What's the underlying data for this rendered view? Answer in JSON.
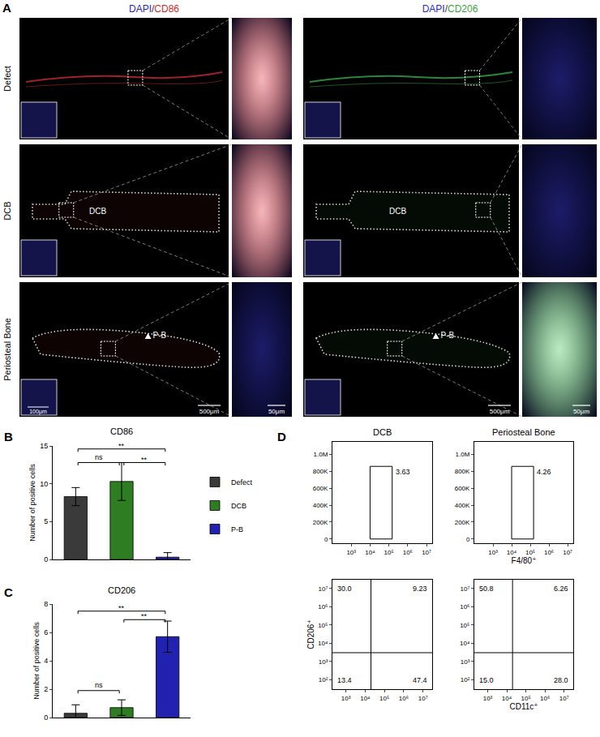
{
  "panel_a": {
    "letter": "A",
    "columns": [
      {
        "parts": [
          {
            "text": "DAPI",
            "color": "#2929c9"
          },
          {
            "text": "/",
            "color": "#333333"
          },
          {
            "text": "CD86",
            "color": "#d42a2a"
          }
        ],
        "stain_color": "#e0303a"
      },
      {
        "parts": [
          {
            "text": "DAPI",
            "color": "#2929c9"
          },
          {
            "text": "/",
            "color": "#333333"
          },
          {
            "text": "CD206",
            "color": "#3aa63a"
          }
        ],
        "stain_color": "#3fbf4f"
      }
    ],
    "rows": [
      "Defect",
      "DCB",
      "Periosteal Bone"
    ],
    "region_labels": {
      "DCB": "DCB",
      "Periosteal Bone": "P-B"
    },
    "scale_bars": {
      "inset": "100μm",
      "overview": "500μm",
      "zoom": "50μm"
    }
  },
  "chart_data": [
    {
      "panel": "B",
      "type": "bar",
      "title": "CD86",
      "categories": [
        "Defect",
        "DCB",
        "P-B"
      ],
      "values": [
        8.3,
        10.3,
        0.3
      ],
      "errors": [
        1.2,
        2.5,
        0.6
      ],
      "colors": [
        "#3a3a3a",
        "#2f7d22",
        "#2222b0"
      ],
      "ylim": [
        0,
        15
      ],
      "yticks": [
        0,
        5,
        10,
        15
      ],
      "y_label": "Number of positive cells",
      "legend": "right",
      "grid": false,
      "tick_labels": "y",
      "comparisons": [
        {
          "from": "Defect",
          "to": "DCB",
          "label": "ns",
          "y": 12.8
        },
        {
          "from": "DCB",
          "to": "P-B",
          "label": "**",
          "y": 12.8
        },
        {
          "from": "Defect",
          "to": "P-B",
          "label": "**",
          "y": 14.6
        }
      ]
    },
    {
      "panel": "C",
      "type": "bar",
      "title": "CD206",
      "categories": [
        "Defect",
        "DCB",
        "P-B"
      ],
      "values": [
        0.3,
        0.7,
        5.7
      ],
      "errors": [
        0.6,
        0.55,
        1.1
      ],
      "colors": [
        "#3a3a3a",
        "#2f7d22",
        "#2222b0"
      ],
      "ylim": [
        0,
        8
      ],
      "yticks": [
        0,
        2,
        4,
        6,
        8
      ],
      "y_label": "Number of positive cells",
      "grid": false,
      "tick_labels": "y",
      "comparisons": [
        {
          "from": "Defect",
          "to": "DCB",
          "label": "ns",
          "y": 1.9
        },
        {
          "from": "DCB",
          "to": "P-B",
          "label": "**",
          "y": 6.9
        },
        {
          "from": "Defect",
          "to": "P-B",
          "label": "**",
          "y": 7.5
        }
      ]
    },
    {
      "panel": "D",
      "type": "flow_cytometry",
      "plots": [
        {
          "title": "DCB",
          "log": "x",
          "xlim": [
            100,
            20000000
          ],
          "xticks": [
            {
              "value": 1000,
              "label": "10³"
            },
            {
              "value": 10000,
              "label": "10⁴"
            },
            {
              "value": 100000,
              "label": "10⁵"
            },
            {
              "value": 1000000,
              "label": "10⁶"
            },
            {
              "value": 10000000,
              "label": "10⁷"
            }
          ],
          "ylim": [
            -50000,
            1150000
          ],
          "yticks": [
            0,
            {
              "value": 200000,
              "label": "200K"
            },
            {
              "value": 400000,
              "label": "400K"
            },
            {
              "value": 600000,
              "label": "600K"
            },
            {
              "value": 800000,
              "label": "800K"
            },
            {
              "value": 1000000,
              "label": "1.0M"
            }
          ],
          "gate": {
            "x": [
              10000,
              150000
            ],
            "y": [
              0,
              860000
            ]
          },
          "values": [
            3.63
          ]
        },
        {
          "title": "Periosteal Bone",
          "log": "x",
          "x_label": "F4/80⁺",
          "xlim": [
            100,
            20000000
          ],
          "xticks": [
            {
              "value": 1000,
              "label": "10³"
            },
            {
              "value": 10000,
              "label": "10⁴"
            },
            {
              "value": 100000,
              "label": "10⁵"
            },
            {
              "value": 1000000,
              "label": "10⁶"
            },
            {
              "value": 10000000,
              "label": "10⁷"
            }
          ],
          "ylim": [
            -50000,
            1150000
          ],
          "yticks": [
            0,
            {
              "value": 200000,
              "label": "200K"
            },
            {
              "value": 400000,
              "label": "400K"
            },
            {
              "value": 600000,
              "label": "600K"
            },
            {
              "value": 800000,
              "label": "800K"
            },
            {
              "value": 1000000,
              "label": "1.0M"
            }
          ],
          "gate": {
            "x": [
              10000,
              150000
            ],
            "y": [
              0,
              860000
            ]
          },
          "values": [
            4.26
          ]
        },
        {
          "log": true,
          "y_label": "CD206⁺",
          "xlim": [
            200,
            30000000
          ],
          "xticks": [
            {
              "value": 1000,
              "label": "10³"
            },
            {
              "value": 10000,
              "label": "10⁴"
            },
            {
              "value": 100000,
              "label": "10⁵"
            },
            {
              "value": 1000000,
              "label": "10⁶"
            },
            {
              "value": 10000000,
              "label": "10⁷"
            }
          ],
          "ylim": [
            30,
            30000000
          ],
          "yticks": [
            {
              "value": 100,
              "label": "10²"
            },
            {
              "value": 1000,
              "label": "10³"
            },
            {
              "value": 10000,
              "label": "10⁴"
            },
            {
              "value": 100000,
              "label": "10⁵"
            },
            {
              "value": 1000000,
              "label": "10⁶"
            },
            {
              "value": 10000000,
              "label": "10⁷"
            }
          ],
          "quadrant": {
            "x": 20000,
            "y": 3000
          },
          "values": [
            30.0,
            9.23,
            13.4,
            47.4
          ],
          "value_labels": [
            "30.0",
            "9.23",
            "13.4",
            "47.4"
          ]
        },
        {
          "log": true,
          "x_label": "CD11c⁺",
          "xlim": [
            200,
            30000000
          ],
          "xticks": [
            {
              "value": 1000,
              "label": "10³"
            },
            {
              "value": 10000,
              "label": "10⁴"
            },
            {
              "value": 100000,
              "label": "10⁵"
            },
            {
              "value": 1000000,
              "label": "10⁶"
            },
            {
              "value": 10000000,
              "label": "10⁷"
            }
          ],
          "ylim": [
            30,
            30000000
          ],
          "yticks": [
            {
              "value": 100,
              "label": "10²"
            },
            {
              "value": 1000,
              "label": "10³"
            },
            {
              "value": 10000,
              "label": "10⁴"
            },
            {
              "value": 100000,
              "label": "10⁵"
            },
            {
              "value": 1000000,
              "label": "10⁶"
            },
            {
              "value": 10000000,
              "label": "10⁷"
            }
          ],
          "quadrant": {
            "x": 20000,
            "y": 3000
          },
          "values": [
            50.8,
            6.26,
            15.0,
            28.0
          ],
          "value_labels": [
            "50.8",
            "6.26",
            "15.0",
            "28.0"
          ]
        }
      ]
    }
  ]
}
